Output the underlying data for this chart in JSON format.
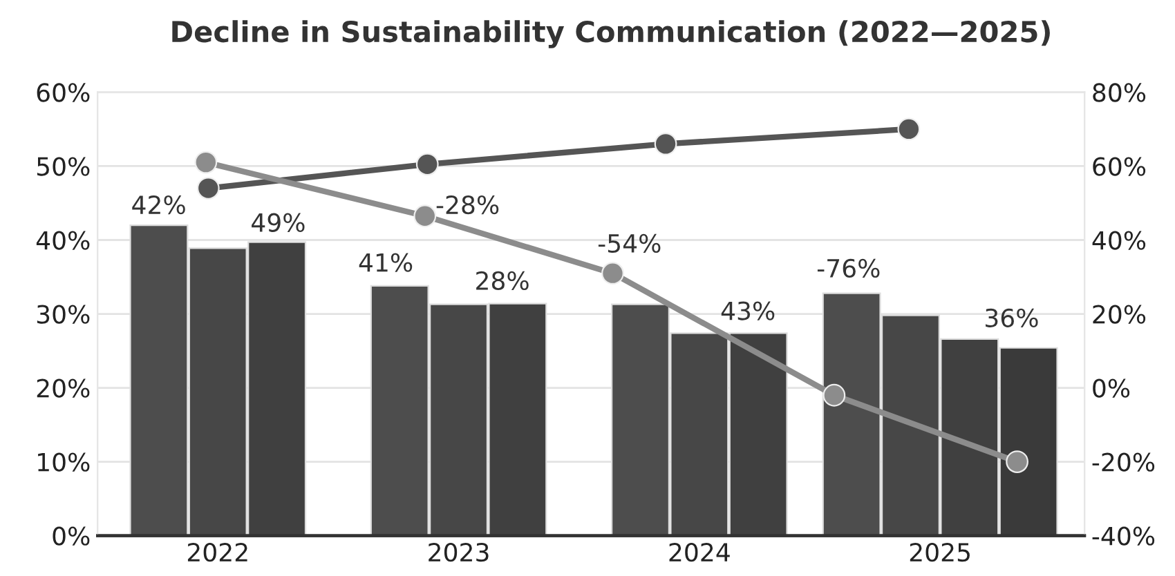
{
  "chart_data": {
    "type": "bar",
    "title": "Decline in Sustainability Communication (2022—2025)",
    "x": [
      2022,
      2023,
      2024,
      2025
    ],
    "xlim": [
      2021.5,
      2025.6
    ],
    "xticks": [
      2022,
      2023,
      2024,
      2025
    ],
    "ylim": [
      0,
      60
    ],
    "yticks": [
      {
        "value": 0,
        "label": "0%"
      },
      {
        "value": 10,
        "label": "10%"
      },
      {
        "value": 20,
        "label": "20%"
      },
      {
        "value": 30,
        "label": "30%"
      },
      {
        "value": 40,
        "label": "40%"
      },
      {
        "value": 50,
        "label": "50%"
      },
      {
        "value": 60,
        "label": "60%"
      }
    ],
    "y2lim": [
      -40,
      80
    ],
    "y2ticks": [
      {
        "value": -40,
        "label": "-40%"
      },
      {
        "value": -20,
        "label": "-20%"
      },
      {
        "value": 0,
        "label": "0%"
      },
      {
        "value": 20,
        "label": "20%"
      },
      {
        "value": 40,
        "label": "40%"
      },
      {
        "value": 60,
        "label": "60%"
      },
      {
        "value": 80,
        "label": "80%"
      }
    ],
    "grid": "y",
    "series": [
      {
        "color": "#4d4d4d",
        "values": [
          42,
          33.8,
          31.3,
          32.8
        ]
      },
      {
        "color": "#474747",
        "values": [
          38.9,
          31.3,
          27.4,
          29.8
        ]
      },
      {
        "color": "#404040",
        "values": [
          39.7,
          31.4,
          27.4,
          26.6
        ]
      },
      {
        "color": "#3a3a3a",
        "values": [
          null,
          null,
          null,
          25.4
        ]
      },
      {
        "type": "line",
        "axis": "y2",
        "color": "#555555",
        "marker": "circle",
        "x": [
          2021.96,
          2022.87,
          2023.86,
          2024.87
        ],
        "values": [
          54,
          60.5,
          66,
          70
        ]
      },
      {
        "type": "line",
        "axis": "y2",
        "color": "#8c8c8c",
        "marker": "circle",
        "x": [
          2021.95,
          2022.86,
          2023.64,
          2024.56,
          2025.32
        ],
        "values": [
          61,
          46.5,
          31,
          -2,
          -20
        ]
      }
    ],
    "annotations": [
      "42%",
      "49%",
      "41%",
      "-28%",
      "28%",
      "-54%",
      "43%",
      "-76%",
      "36%"
    ]
  }
}
